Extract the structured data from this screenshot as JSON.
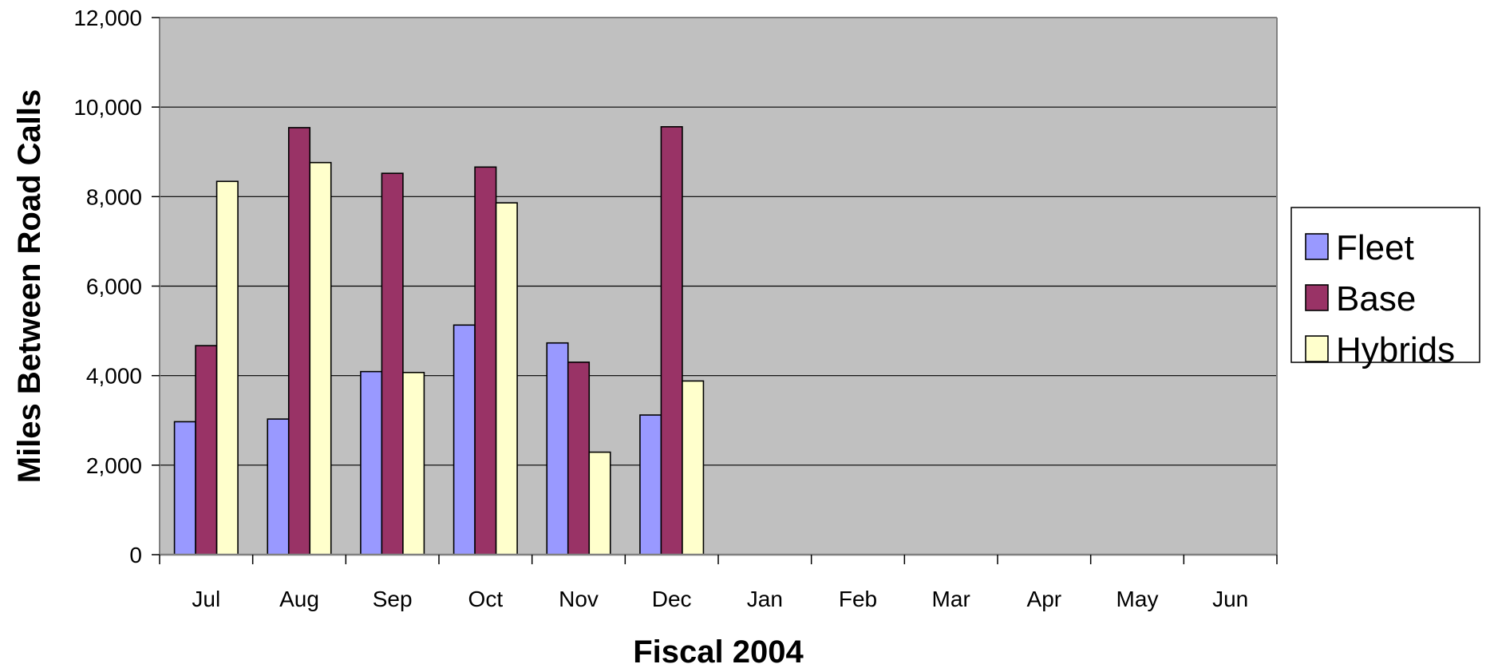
{
  "chart_data": {
    "type": "bar",
    "title": "",
    "xlabel": "Fiscal 2004",
    "ylabel": "Miles Between Road Calls",
    "categories": [
      "Jul",
      "Aug",
      "Sep",
      "Oct",
      "Nov",
      "Dec",
      "Jan",
      "Feb",
      "Mar",
      "Apr",
      "May",
      "Jun"
    ],
    "series": [
      {
        "name": "Fleet",
        "color": "#9999ff",
        "values": [
          2970,
          3030,
          4090,
          5130,
          4730,
          3120,
          null,
          null,
          null,
          null,
          null,
          null
        ]
      },
      {
        "name": "Base",
        "color": "#993366",
        "values": [
          4670,
          9540,
          8520,
          8660,
          4300,
          9560,
          null,
          null,
          null,
          null,
          null,
          null
        ]
      },
      {
        "name": "Hybrids",
        "color": "#ffffcc",
        "values": [
          8340,
          8760,
          4070,
          7860,
          2290,
          3880,
          null,
          null,
          null,
          null,
          null,
          null
        ]
      }
    ],
    "ylim": [
      0,
      12000
    ],
    "yticks": [
      0,
      2000,
      4000,
      6000,
      8000,
      10000,
      12000
    ],
    "ytick_labels": [
      "0",
      "2,000",
      "4,000",
      "6,000",
      "8,000",
      "10,000",
      "12,000"
    ],
    "grid": true,
    "plot_background": "#c0c0c0",
    "legend_position": "right"
  }
}
